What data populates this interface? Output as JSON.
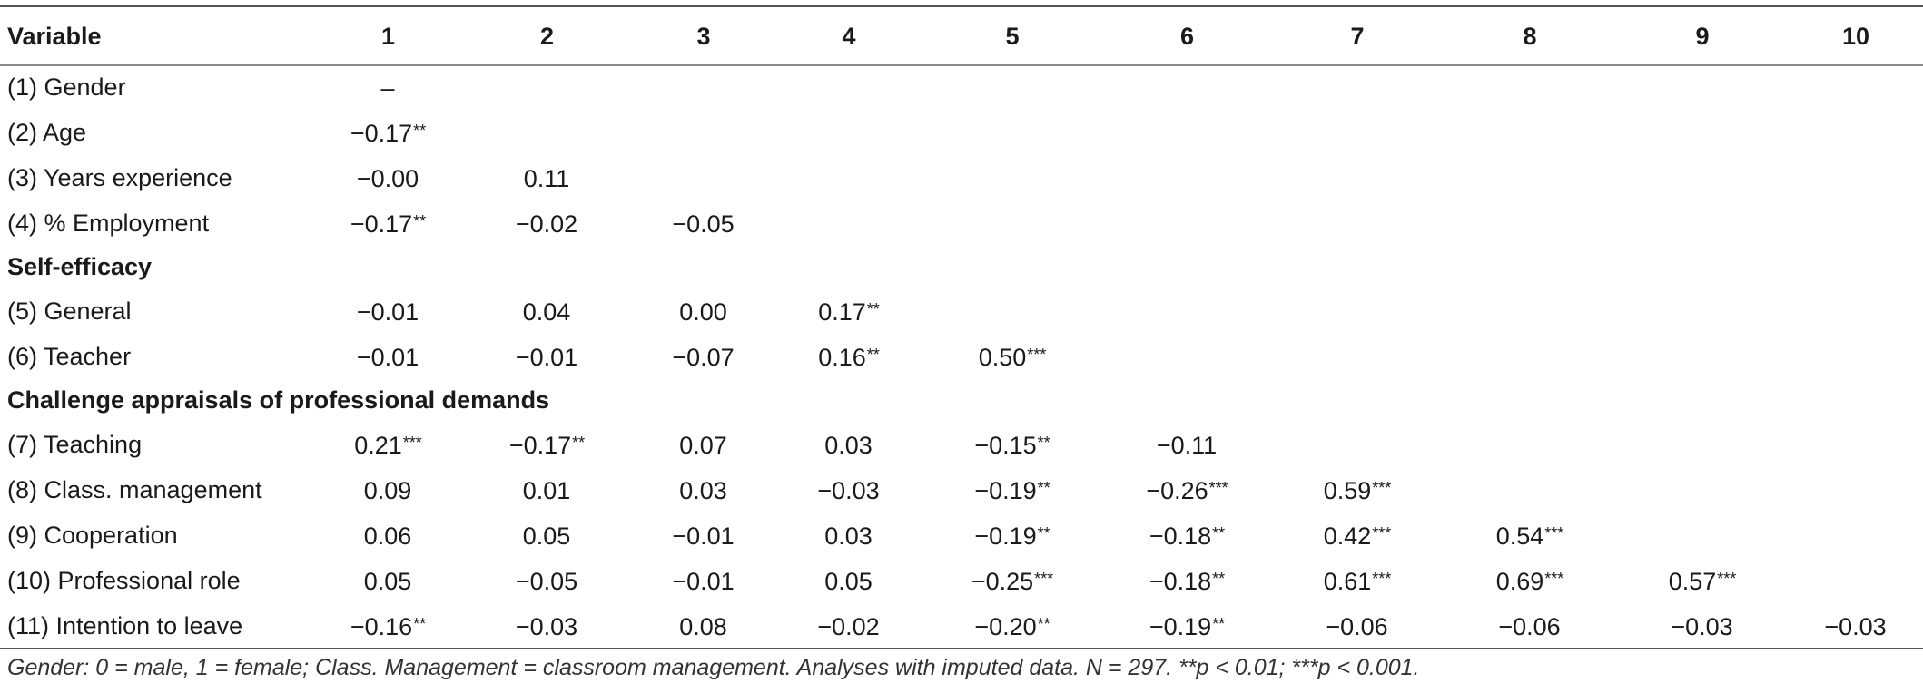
{
  "table": {
    "columns": [
      "Variable",
      "1",
      "2",
      "3",
      "4",
      "5",
      "6",
      "7",
      "8",
      "9",
      "10"
    ],
    "rows": [
      {
        "kind": "data",
        "label": "(1) Gender",
        "cells": [
          [
            "–",
            ""
          ],
          [
            "",
            ""
          ],
          [
            "",
            ""
          ],
          [
            "",
            ""
          ],
          [
            "",
            ""
          ],
          [
            "",
            ""
          ],
          [
            "",
            ""
          ],
          [
            "",
            ""
          ],
          [
            "",
            ""
          ],
          [
            "",
            ""
          ]
        ]
      },
      {
        "kind": "data",
        "label": "(2) Age",
        "cells": [
          [
            "−0.17",
            "**"
          ],
          [
            "",
            ""
          ],
          [
            "",
            ""
          ],
          [
            "",
            ""
          ],
          [
            "",
            ""
          ],
          [
            "",
            ""
          ],
          [
            "",
            ""
          ],
          [
            "",
            ""
          ],
          [
            "",
            ""
          ],
          [
            "",
            ""
          ]
        ]
      },
      {
        "kind": "data",
        "label": "(3) Years experience",
        "cells": [
          [
            "−0.00",
            ""
          ],
          [
            "0.11",
            ""
          ],
          [
            "",
            ""
          ],
          [
            "",
            ""
          ],
          [
            "",
            ""
          ],
          [
            "",
            ""
          ],
          [
            "",
            ""
          ],
          [
            "",
            ""
          ],
          [
            "",
            ""
          ],
          [
            "",
            ""
          ]
        ]
      },
      {
        "kind": "data",
        "label": "(4) % Employment",
        "cells": [
          [
            "−0.17",
            "**"
          ],
          [
            "−0.02",
            ""
          ],
          [
            "−0.05",
            ""
          ],
          [
            "",
            ""
          ],
          [
            "",
            ""
          ],
          [
            "",
            ""
          ],
          [
            "",
            ""
          ],
          [
            "",
            ""
          ],
          [
            "",
            ""
          ],
          [
            "",
            ""
          ]
        ]
      },
      {
        "kind": "section",
        "label": "Self-efficacy"
      },
      {
        "kind": "data",
        "label": "(5) General",
        "cells": [
          [
            "−0.01",
            ""
          ],
          [
            "0.04",
            ""
          ],
          [
            "0.00",
            ""
          ],
          [
            "0.17",
            "**"
          ],
          [
            "",
            ""
          ],
          [
            "",
            ""
          ],
          [
            "",
            ""
          ],
          [
            "",
            ""
          ],
          [
            "",
            ""
          ],
          [
            "",
            ""
          ]
        ]
      },
      {
        "kind": "data",
        "label": "(6) Teacher",
        "cells": [
          [
            "−0.01",
            ""
          ],
          [
            "−0.01",
            ""
          ],
          [
            "−0.07",
            ""
          ],
          [
            "0.16",
            "**"
          ],
          [
            "0.50",
            "***"
          ],
          [
            "",
            ""
          ],
          [
            "",
            ""
          ],
          [
            "",
            ""
          ],
          [
            "",
            ""
          ],
          [
            "",
            ""
          ]
        ]
      },
      {
        "kind": "section",
        "label": "Challenge appraisals of professional demands"
      },
      {
        "kind": "data",
        "label": "(7) Teaching",
        "cells": [
          [
            "0.21",
            "***"
          ],
          [
            "−0.17",
            "**"
          ],
          [
            "0.07",
            ""
          ],
          [
            "0.03",
            ""
          ],
          [
            "−0.15",
            "**"
          ],
          [
            "−0.11",
            ""
          ],
          [
            "",
            ""
          ],
          [
            "",
            ""
          ],
          [
            "",
            ""
          ],
          [
            "",
            ""
          ]
        ]
      },
      {
        "kind": "data",
        "label": "(8) Class. management",
        "cells": [
          [
            "0.09",
            ""
          ],
          [
            "0.01",
            ""
          ],
          [
            "0.03",
            ""
          ],
          [
            "−0.03",
            ""
          ],
          [
            "−0.19",
            "**"
          ],
          [
            "−0.26",
            "***"
          ],
          [
            "0.59",
            "***"
          ],
          [
            "",
            ""
          ],
          [
            "",
            ""
          ],
          [
            "",
            ""
          ]
        ]
      },
      {
        "kind": "data",
        "label": "(9) Cooperation",
        "cells": [
          [
            "0.06",
            ""
          ],
          [
            "0.05",
            ""
          ],
          [
            "−0.01",
            ""
          ],
          [
            "0.03",
            ""
          ],
          [
            "−0.19",
            "**"
          ],
          [
            "−0.18",
            "**"
          ],
          [
            "0.42",
            "***"
          ],
          [
            "0.54",
            "***"
          ],
          [
            "",
            ""
          ],
          [
            "",
            ""
          ]
        ]
      },
      {
        "kind": "data",
        "label": "(10) Professional role",
        "cells": [
          [
            "0.05",
            ""
          ],
          [
            "−0.05",
            ""
          ],
          [
            "−0.01",
            ""
          ],
          [
            "0.05",
            ""
          ],
          [
            "−0.25",
            "***"
          ],
          [
            "−0.18",
            "**"
          ],
          [
            "0.61",
            "***"
          ],
          [
            "0.69",
            "***"
          ],
          [
            "0.57",
            "***"
          ],
          [
            "",
            ""
          ]
        ]
      },
      {
        "kind": "data",
        "label": "(11) Intention to leave",
        "cells": [
          [
            "−0.16",
            "**"
          ],
          [
            "−0.03",
            ""
          ],
          [
            "0.08",
            ""
          ],
          [
            "−0.02",
            ""
          ],
          [
            "−0.20",
            "**"
          ],
          [
            "−0.19",
            "**"
          ],
          [
            "−0.06",
            ""
          ],
          [
            "−0.06",
            ""
          ],
          [
            "−0.03",
            ""
          ],
          [
            "−0.03",
            ""
          ]
        ]
      }
    ],
    "footnote": "Gender: 0 = male, 1 = female; Class. Management = classroom management. Analyses with imputed data. N = 297. **p < 0.01; ***p < 0.001."
  }
}
